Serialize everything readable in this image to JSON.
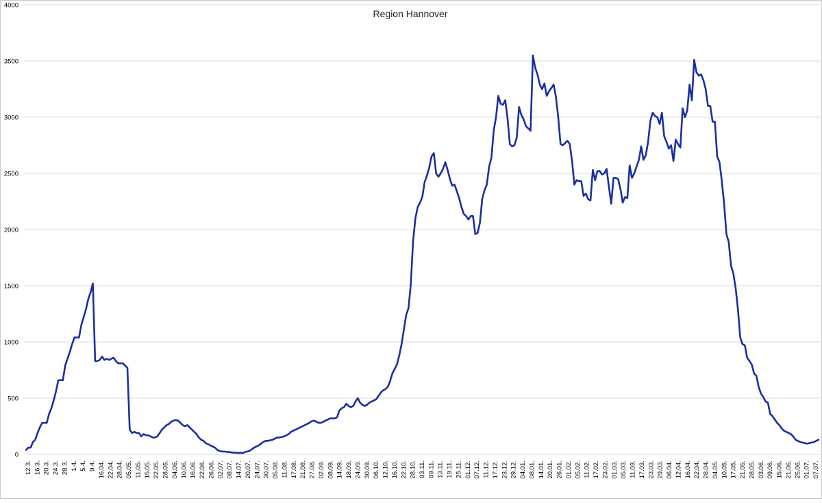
{
  "chart_data": {
    "type": "line",
    "title": "Region Hannover",
    "xlabel": "",
    "ylabel": "",
    "ylim": [
      0,
      4000
    ],
    "yticks": [
      0,
      500,
      1000,
      1500,
      2000,
      2500,
      3000,
      3500,
      4000
    ],
    "grid": true,
    "legend": "none",
    "colors": {
      "line": "#1a2f9e",
      "grid": "#d9d9d9",
      "axis": "#000000",
      "background": "#ffffff"
    },
    "xticks": [
      "12.3.",
      "16.3.",
      "20.3.",
      "24.3.",
      "28.3.",
      "1.4.",
      "5.4.",
      "9.4.",
      "16.04.",
      "22.04.",
      "28.04.",
      "05.05.",
      "11.05.",
      "15.05.",
      "22.05.",
      "28.05.",
      "04.06.",
      "10.06.",
      "16.06.",
      "22.06.",
      "26.06.",
      "02.07.",
      "08.07.",
      "14.07.",
      "20.07.",
      "24.07.",
      "30.07.",
      "05.08.",
      "11.08.",
      "17.08.",
      "21.08.",
      "27.08.",
      "02.09.",
      "08.09.",
      "14.09.",
      "18.09.",
      "24.09.",
      "30.09.",
      "06.10.",
      "12.10.",
      "16.10.",
      "22.10.",
      "28.10.",
      "03.11.",
      "09.11.",
      "13.11.",
      "19.11.",
      "25.11.",
      "01.12.",
      "07.12.",
      "11.12.",
      "17.12.",
      "23.12.",
      "29.12.",
      "04.01.",
      "08.01.",
      "14.01.",
      "20.01.",
      "26.01.",
      "01.02.",
      "05.02.",
      "11.02.",
      "17.02.",
      "23.02.",
      "01.03.",
      "05.03.",
      "11.03.",
      "17.03.",
      "23.03.",
      "29.03.",
      "06.04.",
      "12.04.",
      "16.04.",
      "22.04.",
      "28.04.",
      "04.05.",
      "10.05.",
      "17.05.",
      "21.05.",
      "28.05.",
      "03.06.",
      "09.06.",
      "15.06.",
      "21.06.",
      "25.06.",
      "01.07.",
      "07.07."
    ],
    "series": [
      {
        "values": [
          40,
          60,
          60,
          110,
          130,
          190,
          240,
          280,
          280,
          280,
          360,
          410,
          480,
          560,
          660,
          660,
          660,
          790,
          850,
          910,
          980,
          1040,
          1040,
          1040,
          1150,
          1220,
          1290,
          1380,
          1440,
          1520,
          830,
          830,
          840,
          870,
          840,
          850,
          840,
          850,
          860,
          830,
          810,
          810,
          810,
          790,
          770,
          220,
          190,
          200,
          190,
          190,
          160,
          180,
          170,
          170,
          160,
          150,
          150,
          160,
          190,
          220,
          240,
          260,
          270,
          290,
          300,
          305,
          300,
          280,
          260,
          250,
          260,
          240,
          220,
          200,
          180,
          150,
          130,
          120,
          100,
          90,
          80,
          70,
          60,
          40,
          30,
          25,
          25,
          22,
          20,
          18,
          15,
          15,
          12,
          15,
          10,
          20,
          25,
          30,
          45,
          60,
          70,
          80,
          95,
          110,
          120,
          120,
          125,
          130,
          140,
          150,
          150,
          155,
          160,
          170,
          180,
          200,
          210,
          220,
          230,
          240,
          250,
          260,
          270,
          280,
          295,
          300,
          290,
          280,
          280,
          290,
          300,
          310,
          320,
          320,
          320,
          330,
          390,
          410,
          420,
          450,
          430,
          420,
          430,
          470,
          500,
          460,
          440,
          430,
          440,
          460,
          470,
          480,
          490,
          520,
          550,
          570,
          580,
          600,
          650,
          720,
          760,
          800,
          880,
          980,
          1110,
          1240,
          1300,
          1510,
          1900,
          2100,
          2200,
          2240,
          2290,
          2420,
          2480,
          2550,
          2650,
          2680,
          2500,
          2470,
          2500,
          2540,
          2600,
          2530,
          2450,
          2390,
          2400,
          2340,
          2280,
          2200,
          2140,
          2120,
          2090,
          2120,
          2120,
          1960,
          1970,
          2060,
          2270,
          2350,
          2400,
          2560,
          2640,
          2880,
          3000,
          3190,
          3120,
          3110,
          3150,
          2990,
          2760,
          2740,
          2750,
          2820,
          3090,
          3020,
          2980,
          2920,
          2900,
          2880,
          3550,
          3440,
          3380,
          3290,
          3250,
          3300,
          3190,
          3230,
          3260,
          3290,
          3180,
          3000,
          2760,
          2750,
          2770,
          2790,
          2760,
          2610,
          2400,
          2440,
          2430,
          2430,
          2300,
          2320,
          2270,
          2260,
          2530,
          2440,
          2520,
          2520,
          2490,
          2500,
          2540,
          2380,
          2230,
          2460,
          2460,
          2450,
          2360,
          2240,
          2290,
          2280,
          2570,
          2460,
          2500,
          2560,
          2620,
          2740,
          2620,
          2660,
          2780,
          2970,
          3040,
          3010,
          3000,
          2940,
          3040,
          2830,
          2780,
          2720,
          2750,
          2610,
          2800,
          2760,
          2730,
          3080,
          3000,
          3060,
          3290,
          3150,
          3510,
          3400,
          3370,
          3380,
          3330,
          3250,
          3100,
          3100,
          2960,
          2960,
          2650,
          2600,
          2430,
          2230,
          1960,
          1890,
          1680,
          1610,
          1480,
          1290,
          1040,
          980,
          970,
          860,
          830,
          800,
          720,
          700,
          600,
          540,
          510,
          470,
          460,
          360,
          340,
          310,
          280,
          260,
          230,
          210,
          200,
          190,
          180,
          160,
          130,
          120,
          110,
          105,
          100,
          95,
          100,
          105,
          110,
          120,
          130
        ]
      }
    ]
  }
}
